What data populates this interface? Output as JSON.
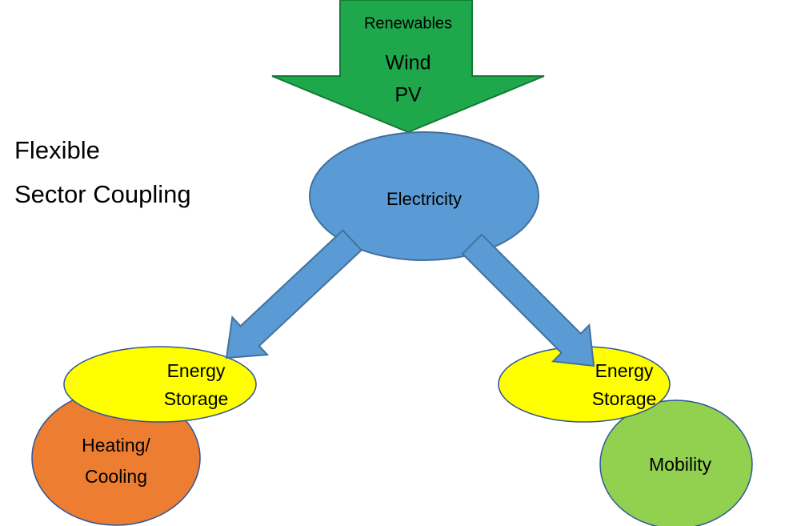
{
  "title": [
    "Flexible",
    "Sector Coupling"
  ],
  "source": {
    "label": "Renewables",
    "items": [
      "Wind",
      "PV"
    ]
  },
  "hub": {
    "label": "Electricity"
  },
  "branches": [
    {
      "storage": [
        "Energy",
        "Storage"
      ],
      "sector": [
        "Heating/",
        "Cooling"
      ]
    },
    {
      "storage": [
        "Energy",
        "Storage"
      ],
      "sector": [
        "Mobility"
      ]
    }
  ]
}
